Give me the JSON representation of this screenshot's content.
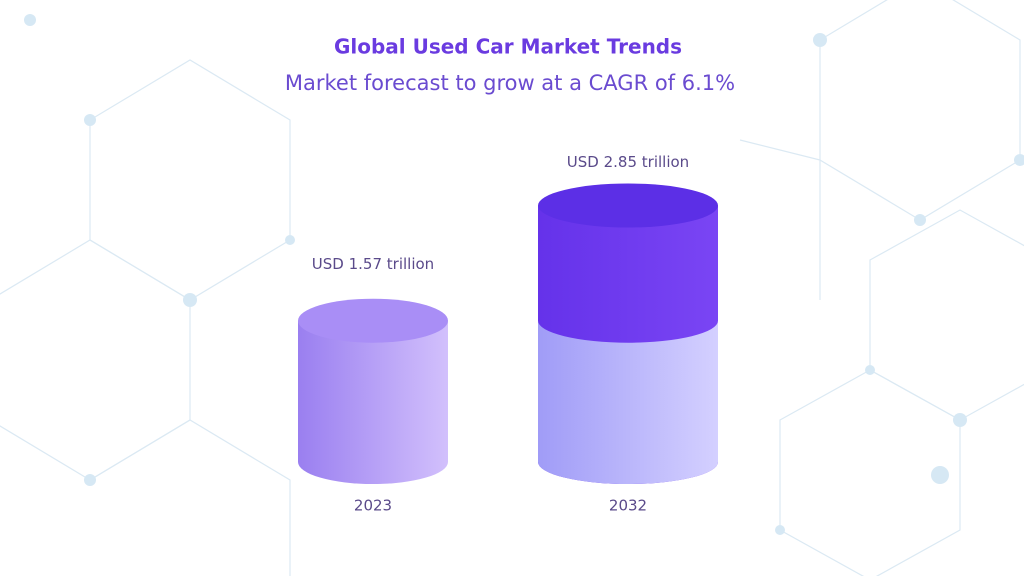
{
  "chart_data": {
    "type": "cylinder",
    "title": "Global Used Car Market Trends",
    "subtitle": "Market forecast to grow at a CAGR of 6.1%",
    "categories": [
      "2023",
      "2032"
    ],
    "values": [
      1.57,
      2.85
    ],
    "value_labels": [
      "USD 1.57 trillion",
      "USD 2.85 trillion"
    ]
  }
}
